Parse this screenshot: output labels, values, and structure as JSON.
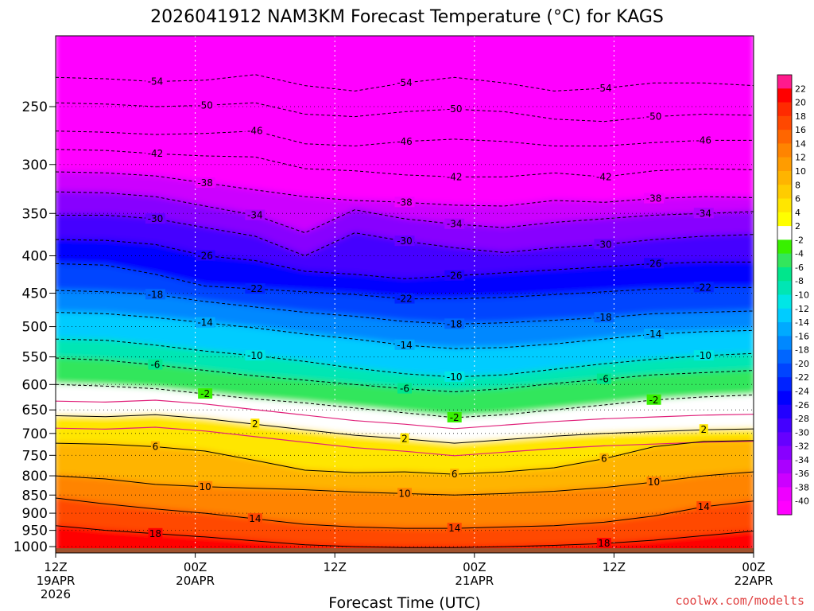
{
  "chart_data": {
    "type": "heatmap",
    "title": "2026041912 NAM3KM Forecast Temperature (°C) for KAGS",
    "xlabel": "Forecast Time (UTC)",
    "ylabel": "",
    "credit": "coolwx.com/modelts",
    "x_ticks": [
      {
        "hour": 0,
        "line1": "12Z",
        "line2": "19APR",
        "line3": "2026"
      },
      {
        "hour": 12,
        "line1": "00Z",
        "line2": "20APR",
        "line3": ""
      },
      {
        "hour": 24,
        "line1": "12Z",
        "line2": "",
        "line3": ""
      },
      {
        "hour": 36,
        "line1": "00Z",
        "line2": "21APR",
        "line3": ""
      },
      {
        "hour": 48,
        "line1": "12Z",
        "line2": "",
        "line3": ""
      },
      {
        "hour": 60,
        "line1": "00Z",
        "line2": "22APR",
        "line3": ""
      }
    ],
    "xlim": [
      0,
      60
    ],
    "y_scale": "log",
    "ylim": [
      1020,
      200
    ],
    "y_ticks": [
      250,
      300,
      350,
      400,
      450,
      500,
      550,
      600,
      650,
      700,
      750,
      800,
      850,
      900,
      950,
      1000
    ],
    "y_tick_labels": [
      "250",
      "300",
      "350",
      "400",
      "450",
      "500",
      "550",
      "600",
      "650",
      "700",
      "750",
      "800",
      "850",
      "900",
      "950",
      "1000"
    ],
    "surface_pressure": 1005,
    "colorbar": {
      "tick_labels": [
        "22",
        "20",
        "18",
        "16",
        "14",
        "12",
        "10",
        "8",
        "6",
        "4",
        "2",
        "-2",
        "-4",
        "-6",
        "-8",
        "-10",
        "-12",
        "-14",
        "-16",
        "-18",
        "-20",
        "-22",
        "-24",
        "-26",
        "-28",
        "-30",
        "-32",
        "-34",
        "-36",
        "-38",
        "-40"
      ],
      "colors": [
        "#ff1a8c",
        "#ff0000",
        "#ff2a00",
        "#ff4800",
        "#ff6600",
        "#ff8400",
        "#ff9c00",
        "#ffb400",
        "#ffcc00",
        "#ffe600",
        "#ffff00",
        "#ffffff",
        "#38f000",
        "#33e65c",
        "#00e68c",
        "#00e6b4",
        "#00e6e6",
        "#00ccff",
        "#00aaff",
        "#0088ff",
        "#0066ff",
        "#0044ff",
        "#0022ff",
        "#0000ff",
        "#2200ff",
        "#4400ff",
        "#6600ff",
        "#8800ff",
        "#aa00ff",
        "#cc00ff",
        "#ee00ff",
        "#ff00ff"
      ]
    },
    "series": [
      {
        "level": -54,
        "values": [
          228,
          229,
          231,
          230,
          226,
          234,
          238,
          232,
          228,
          232,
          238,
          236,
          232,
          232,
          234
        ]
      },
      {
        "level": -50,
        "values": [
          247,
          248,
          250,
          249,
          247,
          256,
          258,
          254,
          252,
          254,
          260,
          262,
          258,
          256,
          257
        ]
      },
      {
        "level": -46,
        "values": [
          270,
          271,
          273,
          272,
          270,
          281,
          283,
          279,
          277,
          279,
          283,
          283,
          280,
          278,
          278
        ]
      },
      {
        "level": -42,
        "values": [
          286,
          287,
          290,
          292,
          293,
          304,
          306,
          310,
          312,
          312,
          308,
          312,
          306,
          304,
          305
        ]
      },
      {
        "level": -38,
        "values": [
          307,
          308,
          311,
          318,
          325,
          332,
          336,
          338,
          341,
          342,
          336,
          338,
          334,
          332,
          333
        ]
      },
      {
        "level": -34,
        "values": [
          327,
          328,
          332,
          342,
          352,
          372,
          346,
          356,
          362,
          366,
          360,
          356,
          352,
          350,
          348
        ]
      },
      {
        "level": -30,
        "values": [
          352,
          352,
          356,
          366,
          376,
          400,
          372,
          382,
          390,
          396,
          390,
          386,
          380,
          376,
          374
        ]
      },
      {
        "level": -26,
        "values": [
          380,
          381,
          386,
          400,
          406,
          420,
          424,
          430,
          426,
          422,
          418,
          414,
          410,
          408,
          408
        ]
      },
      {
        "level": -22,
        "values": [
          410,
          412,
          424,
          440,
          444,
          448,
          452,
          458,
          458,
          456,
          452,
          448,
          444,
          442,
          442
        ]
      },
      {
        "level": -18,
        "values": [
          446,
          448,
          452,
          462,
          470,
          478,
          484,
          492,
          496,
          494,
          490,
          486,
          480,
          478,
          476
        ]
      },
      {
        "level": -14,
        "values": [
          478,
          480,
          486,
          494,
          502,
          512,
          520,
          530,
          536,
          534,
          528,
          520,
          512,
          508,
          506
        ]
      },
      {
        "level": -10,
        "values": [
          520,
          522,
          530,
          540,
          548,
          558,
          570,
          580,
          586,
          582,
          572,
          562,
          554,
          548,
          544
        ]
      },
      {
        "level": -6,
        "values": [
          552,
          556,
          564,
          574,
          584,
          592,
          600,
          608,
          614,
          608,
          598,
          590,
          582,
          578,
          574
        ]
      },
      {
        "level": -2,
        "values": [
          600,
          603,
          608,
          618,
          628,
          636,
          646,
          656,
          666,
          660,
          650,
          640,
          630,
          624,
          620
        ]
      },
      {
        "level": 2,
        "values": [
          662,
          664,
          660,
          668,
          680,
          692,
          704,
          712,
          722,
          714,
          706,
          700,
          696,
          692,
          690
        ]
      },
      {
        "level": 6,
        "values": [
          722,
          724,
          730,
          740,
          762,
          786,
          792,
          790,
          796,
          790,
          780,
          758,
          730,
          718,
          716
        ]
      },
      {
        "level": 10,
        "values": [
          800,
          808,
          822,
          828,
          832,
          836,
          842,
          846,
          850,
          846,
          840,
          830,
          816,
          800,
          790
        ]
      },
      {
        "level": 14,
        "values": [
          858,
          874,
          888,
          900,
          916,
          932,
          940,
          944,
          944,
          940,
          936,
          926,
          908,
          882,
          866
        ]
      },
      {
        "level": 18,
        "values": [
          936,
          950,
          960,
          970,
          982,
          994,
          1000,
          1003,
          1003,
          1000,
          996,
          990,
          980,
          966,
          952
        ]
      }
    ]
  }
}
